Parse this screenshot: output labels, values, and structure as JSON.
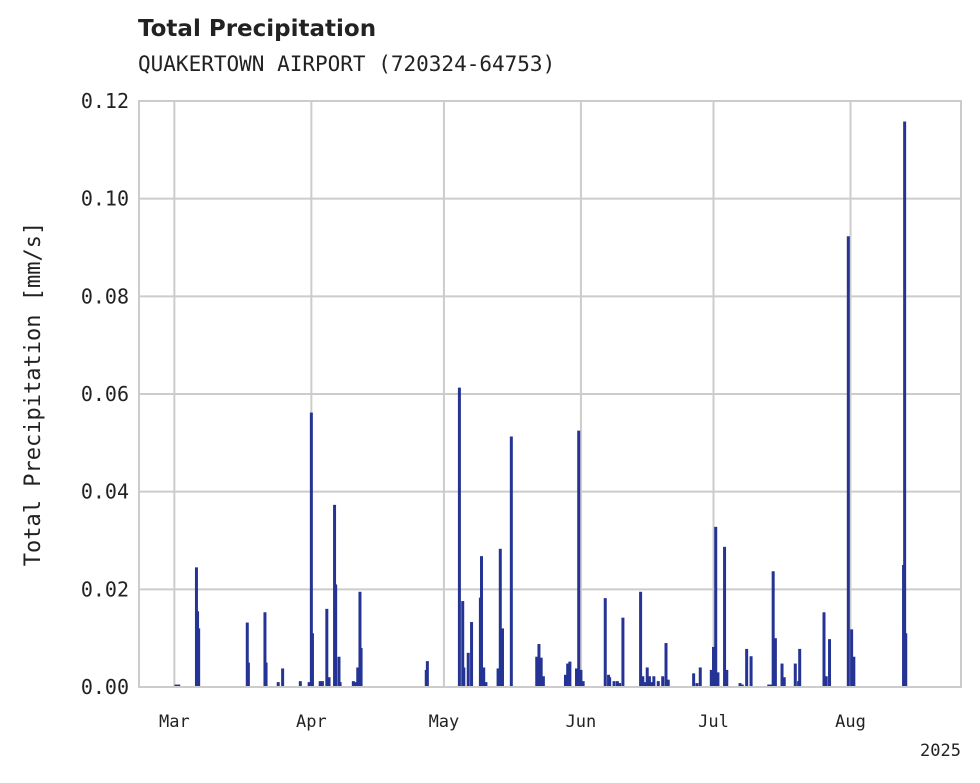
{
  "chart_data": {
    "type": "bar",
    "title": "Total Precipitation",
    "subtitle": "QUAKERTOWN AIRPORT (720324-64753)",
    "ylabel": "Total Precipitation [mm/s]",
    "xlabel": "",
    "year_label": "2025",
    "ylim": [
      0,
      0.12
    ],
    "yticks": [
      "0.00",
      "0.02",
      "0.04",
      "0.06",
      "0.08",
      "0.10",
      "0.12"
    ],
    "xlim": [
      "2025-02-21",
      "2025-08-26"
    ],
    "xticks": [
      {
        "date": "2025-03-01",
        "label": "Mar"
      },
      {
        "date": "2025-04-01",
        "label": "Apr"
      },
      {
        "date": "2025-05-01",
        "label": "May"
      },
      {
        "date": "2025-06-01",
        "label": "Jun"
      },
      {
        "date": "2025-07-01",
        "label": "Jul"
      },
      {
        "date": "2025-08-01",
        "label": "Aug"
      }
    ],
    "grid": true,
    "bar_color": "#253494",
    "series": [
      {
        "points": [
          [
            "2025-03-01T09:00",
            0.0005
          ],
          [
            "2025-03-02T00:00",
            0.0005
          ],
          [
            "2025-03-06T00:00",
            0.0245
          ],
          [
            "2025-03-06T06:00",
            0.0155
          ],
          [
            "2025-03-06T12:00",
            0.012
          ],
          [
            "2025-03-17T12:00",
            0.0132
          ],
          [
            "2025-03-17T18:00",
            0.005
          ],
          [
            "2025-03-21T12:00",
            0.0153
          ],
          [
            "2025-03-21T18:00",
            0.005
          ],
          [
            "2025-03-24T12:00",
            0.001
          ],
          [
            "2025-03-25T12:00",
            0.0038
          ],
          [
            "2025-03-29T12:00",
            0.0012
          ],
          [
            "2025-03-31T12:00",
            0.001
          ],
          [
            "2025-04-01T00:00",
            0.0562
          ],
          [
            "2025-04-01T06:00",
            0.011
          ],
          [
            "2025-04-03T00:00",
            0.0012
          ],
          [
            "2025-04-03T12:00",
            0.0012
          ],
          [
            "2025-04-04T12:00",
            0.016
          ],
          [
            "2025-04-05T00:00",
            0.002
          ],
          [
            "2025-04-06T06:00",
            0.0373
          ],
          [
            "2025-04-06T12:00",
            0.021
          ],
          [
            "2025-04-07T06:00",
            0.0062
          ],
          [
            "2025-04-07T12:00",
            0.001
          ],
          [
            "2025-04-10T12:00",
            0.0012
          ],
          [
            "2025-04-11T00:00",
            0.001
          ],
          [
            "2025-04-11T12:00",
            0.004
          ],
          [
            "2025-04-12T00:00",
            0.0195
          ],
          [
            "2025-04-12T06:00",
            0.008
          ],
          [
            "2025-04-27T00:00",
            0.0035
          ],
          [
            "2025-04-27T06:00",
            0.0053
          ],
          [
            "2025-05-04T12:00",
            0.0613
          ],
          [
            "2025-05-05T06:00",
            0.0176
          ],
          [
            "2025-05-05T12:00",
            0.004
          ],
          [
            "2025-05-06T12:00",
            0.007
          ],
          [
            "2025-05-07T06:00",
            0.0133
          ],
          [
            "2025-05-09T06:00",
            0.0183
          ],
          [
            "2025-05-09T12:00",
            0.0268
          ],
          [
            "2025-05-10T00:00",
            0.004
          ],
          [
            "2025-05-10T12:00",
            0.001
          ],
          [
            "2025-05-13T06:00",
            0.0038
          ],
          [
            "2025-05-13T18:00",
            0.0283
          ],
          [
            "2025-05-14T06:00",
            0.012
          ],
          [
            "2025-05-16T06:00",
            0.0513
          ],
          [
            "2025-05-22T00:00",
            0.0062
          ],
          [
            "2025-05-22T12:00",
            0.0088
          ],
          [
            "2025-05-23T00:00",
            0.006
          ],
          [
            "2025-05-23T12:00",
            0.0022
          ],
          [
            "2025-05-28T12:00",
            0.0025
          ],
          [
            "2025-05-29T00:00",
            0.0048
          ],
          [
            "2025-05-29T12:00",
            0.0052
          ],
          [
            "2025-05-31T00:00",
            0.0038
          ],
          [
            "2025-05-31T12:00",
            0.0525
          ],
          [
            "2025-06-01T00:00",
            0.0035
          ],
          [
            "2025-06-01T12:00",
            0.0012
          ],
          [
            "2025-06-06T12:00",
            0.0182
          ],
          [
            "2025-06-07T06:00",
            0.0025
          ],
          [
            "2025-06-07T12:00",
            0.002
          ],
          [
            "2025-06-08T12:00",
            0.0012
          ],
          [
            "2025-06-09T06:00",
            0.0012
          ],
          [
            "2025-06-09T18:00",
            0.0008
          ],
          [
            "2025-06-10T12:00",
            0.0142
          ],
          [
            "2025-06-14T12:00",
            0.0195
          ],
          [
            "2025-06-15T00:00",
            0.0022
          ],
          [
            "2025-06-15T12:00",
            0.001
          ],
          [
            "2025-06-16T00:00",
            0.004
          ],
          [
            "2025-06-16T12:00",
            0.0022
          ],
          [
            "2025-06-17T00:00",
            0.001
          ],
          [
            "2025-06-17T12:00",
            0.0022
          ],
          [
            "2025-06-18T12:00",
            0.0012
          ],
          [
            "2025-06-19T12:00",
            0.0022
          ],
          [
            "2025-06-20T06:00",
            0.009
          ],
          [
            "2025-06-20T18:00",
            0.0015
          ],
          [
            "2025-06-26T12:00",
            0.0028
          ],
          [
            "2025-06-27T06:00",
            0.0008
          ],
          [
            "2025-06-28T00:00",
            0.004
          ],
          [
            "2025-06-30T12:00",
            0.0035
          ],
          [
            "2025-07-01T00:00",
            0.0082
          ],
          [
            "2025-07-01T12:00",
            0.0328
          ],
          [
            "2025-07-02T00:00",
            0.003
          ],
          [
            "2025-07-03T12:00",
            0.0287
          ],
          [
            "2025-07-04T00:00",
            0.0035
          ],
          [
            "2025-07-07T00:00",
            0.0008
          ],
          [
            "2025-07-07T12:00",
            0.0005
          ],
          [
            "2025-07-08T12:00",
            0.0078
          ],
          [
            "2025-07-09T12:00",
            0.0063
          ],
          [
            "2025-07-13T12:00",
            0.0005
          ],
          [
            "2025-07-14T00:00",
            0.0005
          ],
          [
            "2025-07-14T12:00",
            0.0237
          ],
          [
            "2025-07-15T00:00",
            0.01
          ],
          [
            "2025-07-16T12:00",
            0.0048
          ],
          [
            "2025-07-17T00:00",
            0.002
          ],
          [
            "2025-07-19T12:00",
            0.0048
          ],
          [
            "2025-07-20T06:00",
            0.0012
          ],
          [
            "2025-07-20T12:00",
            0.0078
          ],
          [
            "2025-07-26T00:00",
            0.0153
          ],
          [
            "2025-07-26T12:00",
            0.0022
          ],
          [
            "2025-07-27T06:00",
            0.0098
          ],
          [
            "2025-07-31T12:00",
            0.0923
          ],
          [
            "2025-08-01T06:00",
            0.0118
          ],
          [
            "2025-08-01T18:00",
            0.0062
          ],
          [
            "2025-08-13T00:00",
            0.025
          ],
          [
            "2025-08-13T06:00",
            0.1158
          ],
          [
            "2025-08-13T12:00",
            0.011
          ]
        ]
      }
    ]
  }
}
